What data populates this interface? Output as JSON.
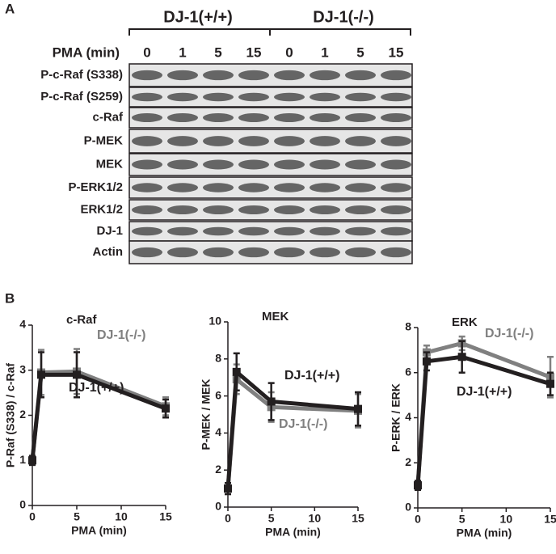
{
  "panel_a": {
    "label": "A",
    "groups": [
      "DJ-1(+/+)",
      "DJ-1(-/-)"
    ],
    "pma_label": "PMA (min)",
    "lanes": [
      "0",
      "1",
      "5",
      "15",
      "0",
      "1",
      "5",
      "15"
    ],
    "rows": [
      "P-c-Raf (S338)",
      "P-c-Raf (S259)",
      "c-Raf",
      "P-MEK",
      "MEK",
      "P-ERK1/2",
      "ERK1/2",
      "DJ-1",
      "Actin"
    ]
  },
  "panel_b": {
    "label": "B"
  },
  "chart_data": [
    {
      "type": "line",
      "title": "c-Raf",
      "x_label": "PMA (min)",
      "y_label": "P-Raf (S338) / c-Raf",
      "x": [
        0,
        1,
        5,
        15
      ],
      "xlim": [
        0,
        15
      ],
      "xticks": [
        0,
        5,
        10,
        15
      ],
      "ylim": [
        0,
        4
      ],
      "yticks": [
        0,
        1,
        2,
        3,
        4
      ],
      "series": [
        {
          "name": "DJ-1(+/+)",
          "color": "#231f20",
          "values": [
            1,
            2.9,
            2.9,
            2.15
          ],
          "errors": [
            0.1,
            0.5,
            0.5,
            0.2
          ]
        },
        {
          "name": "DJ-1(-/-)",
          "color": "#808080",
          "values": [
            1,
            2.95,
            2.97,
            2.2
          ],
          "errors": [
            0.1,
            0.5,
            0.5,
            0.2
          ]
        }
      ]
    },
    {
      "type": "line",
      "title": "MEK",
      "x_label": "PMA (min)",
      "y_label": "P-MEK / MEK",
      "x": [
        0,
        1,
        5,
        15
      ],
      "xlim": [
        0,
        15
      ],
      "xticks": [
        0,
        5,
        10,
        15
      ],
      "ylim": [
        0,
        10
      ],
      "yticks": [
        0,
        2,
        4,
        6,
        8,
        10
      ],
      "series": [
        {
          "name": "DJ-1(+/+)",
          "color": "#231f20",
          "values": [
            1,
            7.3,
            5.7,
            5.3
          ],
          "errors": [
            0.3,
            1.0,
            1.0,
            0.9
          ]
        },
        {
          "name": "DJ-1(-/-)",
          "color": "#808080",
          "values": [
            1,
            6.9,
            5.4,
            5.2
          ],
          "errors": [
            0.3,
            0.8,
            0.8,
            0.9
          ]
        }
      ]
    },
    {
      "type": "line",
      "title": "ERK",
      "x_label": "PMA (min)",
      "y_label": "P-ERK / ERK",
      "x": [
        0,
        1,
        5,
        15
      ],
      "xlim": [
        0,
        15
      ],
      "xticks": [
        0,
        5,
        10,
        15
      ],
      "ylim": [
        0,
        8
      ],
      "yticks": [
        0,
        2,
        4,
        6,
        8
      ],
      "series": [
        {
          "name": "DJ-1(+/+)",
          "color": "#231f20",
          "values": [
            1,
            6.5,
            6.7,
            5.5
          ],
          "errors": [
            0.2,
            0.4,
            0.7,
            0.5
          ]
        },
        {
          "name": "DJ-1(-/-)",
          "color": "#808080",
          "values": [
            1,
            6.9,
            7.3,
            5.8
          ],
          "errors": [
            0.2,
            0.3,
            0.3,
            0.9
          ]
        }
      ]
    }
  ]
}
